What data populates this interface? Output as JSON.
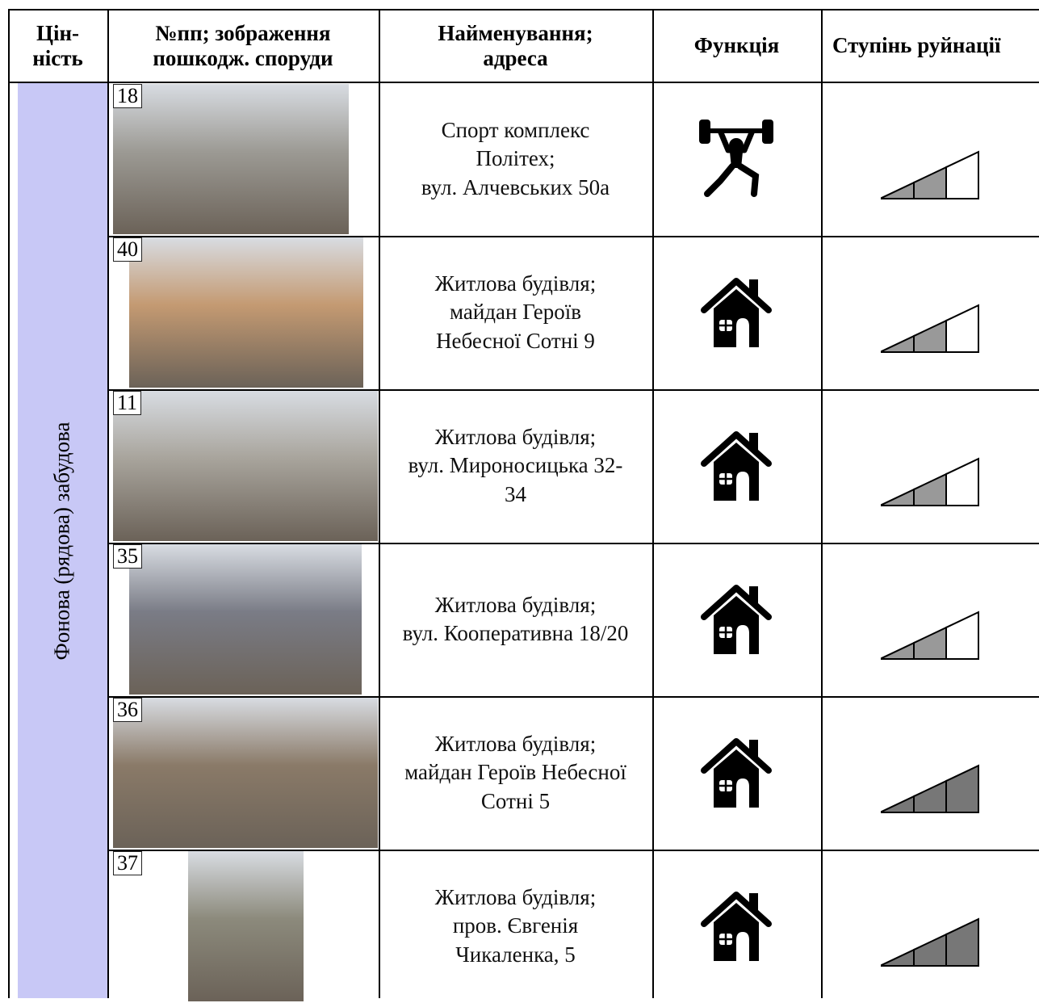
{
  "header": {
    "columns": [
      "Цін-\nність",
      "№пп; зображення\nпошкодж. споруди",
      "Найменування;\nадреса",
      "Функція",
      "Ступінь руйнації"
    ]
  },
  "group_label": "Фонова (рядова) забудова",
  "rows": [
    {
      "number": "18",
      "name": "Спорт комплекс\nПолітех;\nвул. Алчевських 50а",
      "damage": 2
    },
    {
      "number": "40",
      "name": "Житлова будівля;\nмайдан Героїв\nНебесної Сотні 9",
      "damage": 2
    },
    {
      "number": "11",
      "name": "Житлова будівля;\nвул. Мироносицька 32-\n34",
      "damage": 2
    },
    {
      "number": "35",
      "name": "Житлова будівля;\nвул. Кооперативна 18/20",
      "damage": 2
    },
    {
      "number": "36",
      "name": "Житлова будівля;\nмайдан Героїв Небесної\nСотні 5",
      "damage": 3
    },
    {
      "number": "37",
      "name": "Житлова будівля;\nпров. Євгенія\nЧикаленка, 5",
      "damage": 3
    }
  ]
}
